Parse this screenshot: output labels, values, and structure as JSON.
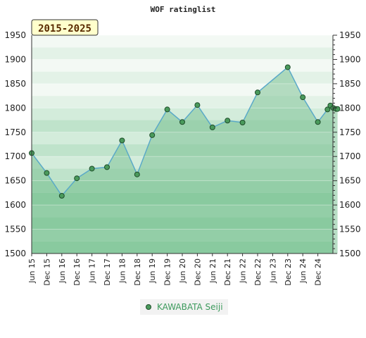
{
  "chart_data": {
    "type": "area",
    "title": "WOF ratinglist",
    "period_label": "2015-2025",
    "legend_placement": "bottom-center",
    "ylim": [
      1500,
      1950
    ],
    "yticks": [
      1500,
      1550,
      1600,
      1650,
      1700,
      1750,
      1800,
      1850,
      1900,
      1950
    ],
    "xtick_labels": [
      "Jun 15",
      "Dec 15",
      "Jun 16",
      "Dec 16",
      "Jun 17",
      "Dec 17",
      "Jun 18",
      "Dec 18",
      "Jun 19",
      "Dec 19",
      "Jun 20",
      "Dec 20",
      "Jun 21",
      "Dec 21",
      "Jun 22",
      "Dec 22",
      "Jun 23",
      "Dec 23",
      "Jun 24",
      "Dec 24"
    ],
    "grid": true,
    "colors": {
      "line": "#5aa9c8",
      "marker_fill": "#4a9a5c",
      "marker_stroke": "#1f4d2a",
      "fill": "#7ec395",
      "band_light": "#e6f3ea",
      "band_mid": "#d2ebda",
      "badge_bg": "#ffffcc",
      "badge_border": "#333333"
    },
    "series": [
      {
        "name": "KAWABATA Seiji",
        "points": [
          {
            "x": "Jun 15",
            "y": 1707
          },
          {
            "x": "Dec 15",
            "y": 1666
          },
          {
            "x": "Jun 16",
            "y": 1619
          },
          {
            "x": "Dec 16",
            "y": 1655
          },
          {
            "x": "Jun 17",
            "y": 1675
          },
          {
            "x": "Dec 17",
            "y": 1678
          },
          {
            "x": "Jun 18",
            "y": 1733
          },
          {
            "x": "Dec 18",
            "y": 1663
          },
          {
            "x": "Jun 19",
            "y": 1744
          },
          {
            "x": "Dec 19",
            "y": 1797
          },
          {
            "x": "Jun 20",
            "y": 1771
          },
          {
            "x": "Dec 20",
            "y": 1806
          },
          {
            "x": "Jun 21",
            "y": 1760
          },
          {
            "x": "Dec 21",
            "y": 1774
          },
          {
            "x": "Jun 22",
            "y": 1770
          },
          {
            "x": "Dec 22",
            "y": 1832
          },
          {
            "x": "Jun 23",
            "y": 1858
          },
          {
            "x": "Dec 23",
            "y": 1884
          },
          {
            "x": "Jun 24",
            "y": 1822
          },
          {
            "x": "Dec 24",
            "y": 1771
          },
          {
            "x": "Dec 24",
            "y": 1797
          },
          {
            "x": "Dec 24",
            "y": 1805
          },
          {
            "x": "Dec 24",
            "y": 1800
          },
          {
            "x": "Dec 24",
            "y": 1798
          },
          {
            "x": "Dec 24",
            "y": 1798
          }
        ],
        "marker_visible": [
          true,
          true,
          true,
          true,
          true,
          true,
          true,
          true,
          true,
          true,
          true,
          true,
          true,
          true,
          true,
          true,
          false,
          true,
          true,
          true,
          true,
          true,
          true,
          true,
          true
        ]
      }
    ]
  }
}
